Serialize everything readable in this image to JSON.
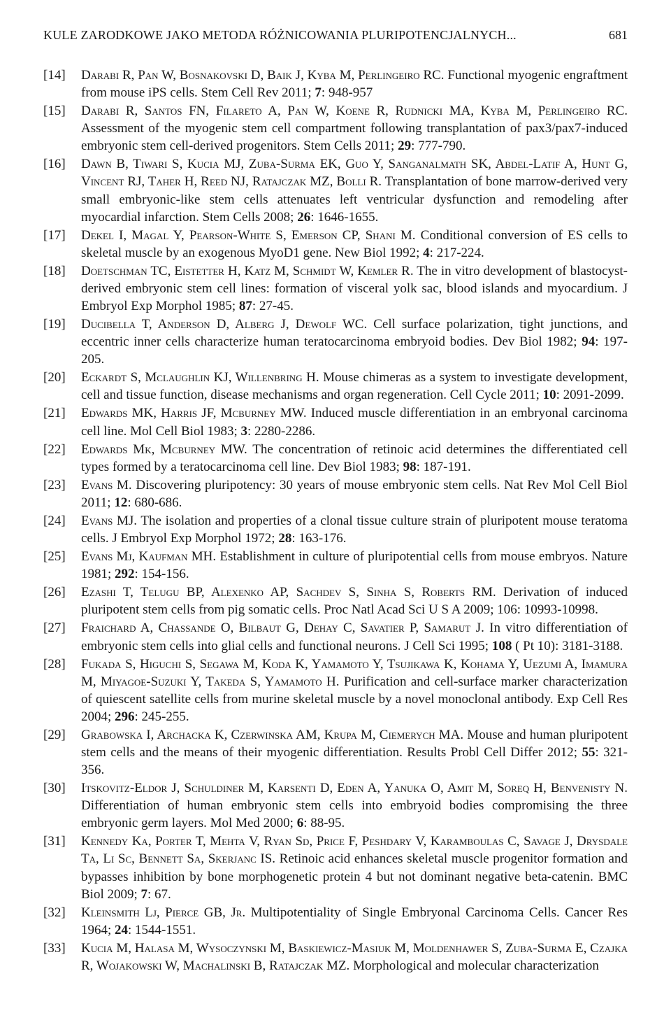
{
  "header": {
    "running_title": "KULE ZARODKOWE JAKO METODA RÓŻNICOWANIA PLURIPOTENCJALNYCH...",
    "page_number": "681"
  },
  "typography": {
    "body_fontsize_pt": 14,
    "header_fontsize_pt": 13,
    "line_height": 1.32,
    "font_family": "Times New Roman",
    "text_color": "#1a1a1a",
    "background_color": "#ffffff"
  },
  "references": [
    {
      "num": "[14]",
      "authors": "Darabi R, Pan W, Bosnakovski D, Baik J, Kyba M, Perlingeiro RC.",
      "title_rest": " Functional myogenic engraftment from mouse iPS cells. Stem Cell Rev 2011; ",
      "vol": "7",
      "tail": ": 948-957"
    },
    {
      "num": "[15]",
      "authors": "Darabi R, Santos FN, Filareto A, Pan W, Koene R, Rudnicki MA, Kyba M, Perlingeiro RC.",
      "title_rest": " Assessment of the myogenic stem cell compartment following transplantation of pax3/pax7-induced embryonic stem cell-derived progenitors. Stem Cells 2011; ",
      "vol": "29",
      "tail": ": 777-790."
    },
    {
      "num": "[16]",
      "authors": "Dawn B, Tiwari S, Kucia MJ, Zuba-Surma EK, Guo Y, Sanganalmath SK, Abdel-Latif A, Hunt G, Vincent RJ, Taher H, Reed NJ, Ratajczak MZ, Bolli R.",
      "title_rest": " Transplantation of bone marrow-derived very small embryonic-like stem cells attenuates left ventricular dysfunction and remodeling after myocardial infarction. Stem Cells 2008; ",
      "vol": "26",
      "tail": ": 1646-1655."
    },
    {
      "num": "[17]",
      "authors": "Dekel I, Magal Y, Pearson-White S, Emerson CP, Shani M.",
      "title_rest": " Conditional conversion of ES cells to skeletal muscle by an exogenous MyoD1 gene. New Biol 1992; ",
      "vol": "4",
      "tail": ": 217-224."
    },
    {
      "num": "[18]",
      "authors": "Doetschman TC, Eistetter H, Katz M, Schmidt W, Kemler R.",
      "title_rest": " The in vitro development of blastocyst-derived embryonic stem cell lines: formation of visceral yolk sac, blood islands and myocardium. J Embryol Exp Morphol 1985; ",
      "vol": "87",
      "tail": ": 27-45."
    },
    {
      "num": "[19]",
      "authors": "Ducibella T, Anderson D, Alberg J, Dewolf WC.",
      "title_rest": " Cell surface polarization, tight junctions, and eccentric inner cells characterize human teratocarcinoma embryoid bodies. Dev Biol 1982; ",
      "vol": "94",
      "tail": ": 197-205."
    },
    {
      "num": "[20]",
      "authors": "Eckardt S, Mclaughlin KJ, Willenbring H.",
      "title_rest": " Mouse chimeras as a system to investigate development, cell and tissue function, disease mechanisms and organ regeneration. Cell Cycle 2011; ",
      "vol": "10",
      "tail": ": 2091-2099."
    },
    {
      "num": "[21]",
      "authors": "Edwards MK, Harris JF, Mcburney MW.",
      "title_rest": " Induced muscle differentiation in an embryonal carcinoma cell line. Mol Cell Biol 1983; ",
      "vol": "3",
      "tail": ": 2280-2286."
    },
    {
      "num": "[22]",
      "authors": "Edwards Mk, Mcburney MW.",
      "title_rest": " The concentration of retinoic acid determines the differentiated cell types formed by a teratocarcinoma cell line. Dev Biol 1983; ",
      "vol": "98",
      "tail": ": 187-191."
    },
    {
      "num": "[23]",
      "authors": "Evans M.",
      "title_rest": " Discovering pluripotency: 30 years of mouse embryonic stem cells. Nat Rev Mol Cell Biol 2011; ",
      "vol": "12",
      "tail": ": 680-686."
    },
    {
      "num": "[24]",
      "authors": "Evans MJ.",
      "title_rest": " The isolation and properties of a clonal tissue culture strain of pluripotent mouse teratoma cells. J Embryol Exp Morphol 1972; ",
      "vol": "28",
      "tail": ": 163-176."
    },
    {
      "num": "[25]",
      "authors": "Evans Mj, Kaufman MH.",
      "title_rest": " Establishment in culture of pluripotential cells from mouse embryos. Nature 1981; ",
      "vol": "292",
      "tail": ": 154-156."
    },
    {
      "num": "[26]",
      "authors": "Ezashi T, Telugu BP, Alexenko AP, Sachdev S, Sinha S, Roberts RM.",
      "title_rest": " Derivation of induced pluripotent stem cells from pig somatic cells. Proc Natl Acad Sci U S A 2009; 106: 10993-10998.",
      "vol": "",
      "tail": ""
    },
    {
      "num": "[27]",
      "authors": "Fraichard A, Chassande O, Bilbaut G, Dehay C, Savatier P, Samarut J.",
      "title_rest": " In vitro differentiation of embryonic stem cells into glial cells and functional neurons. J Cell Sci 1995; ",
      "vol": "108",
      "tail": " ( Pt 10): 3181-3188."
    },
    {
      "num": "[28]",
      "authors": "Fukada S, Higuchi S, Segawa M, Koda K, Yamamoto Y, Tsujikawa K, Kohama Y, Uezumi A, Imamura M, Miyagoe-Suzuki Y, Takeda S, Yamamoto H.",
      "title_rest": " Purification and cell-surface marker characterization of quiescent satellite cells from murine skeletal muscle by a novel monoclonal antibody. Exp Cell Res 2004; ",
      "vol": "296",
      "tail": ": 245-255."
    },
    {
      "num": "[29]",
      "authors": "Grabowska I, Archacka K, Czerwinska AM, Krupa M, Ciemerych MA.",
      "title_rest": " Mouse and human pluripotent stem cells and the means of their myogenic differentiation. Results Probl Cell Differ 2012; ",
      "vol": "55",
      "tail": ": 321-356."
    },
    {
      "num": "[30]",
      "authors": "Itskovitz-Eldor J, Schuldiner M, Karsenti D, Eden A, Yanuka O, Amit M, Soreq H, Benvenisty N.",
      "title_rest": " Differentiation of human embryonic stem cells into embryoid bodies compromising the three embryonic germ layers. Mol Med 2000; ",
      "vol": "6",
      "tail": ": 88-95."
    },
    {
      "num": "[31]",
      "authors": "Kennedy Ka, Porter T, Mehta V, Ryan Sd, Price F, Peshdary V, Karamboulas C, Savage J, Drysdale Ta, Li Sc, Bennett Sa, Skerjanc IS.",
      "title_rest": " Retinoic acid enhances skeletal muscle progenitor formation and bypasses inhibition by bone morphogenetic protein 4 but not dominant negative beta-catenin. BMC Biol 2009; ",
      "vol": "7",
      "tail": ": 67."
    },
    {
      "num": "[32]",
      "authors": "Kleinsmith Lj, Pierce GB, Jr.",
      "title_rest": " Multipotentiality of Single Embryonal Carcinoma Cells. Cancer Res 1964; ",
      "vol": "24",
      "tail": ": 1544-1551."
    },
    {
      "num": "[33]",
      "authors": "Kucia M, Halasa M, Wysoczynski M, Baskiewicz-Masiuk M, Moldenhawer S, Zuba-Surma E, Czajka R, Wojakowski W, Machalinski B, Ratajczak MZ.",
      "title_rest": " Morphological and molecular characterization",
      "vol": "",
      "tail": ""
    }
  ]
}
